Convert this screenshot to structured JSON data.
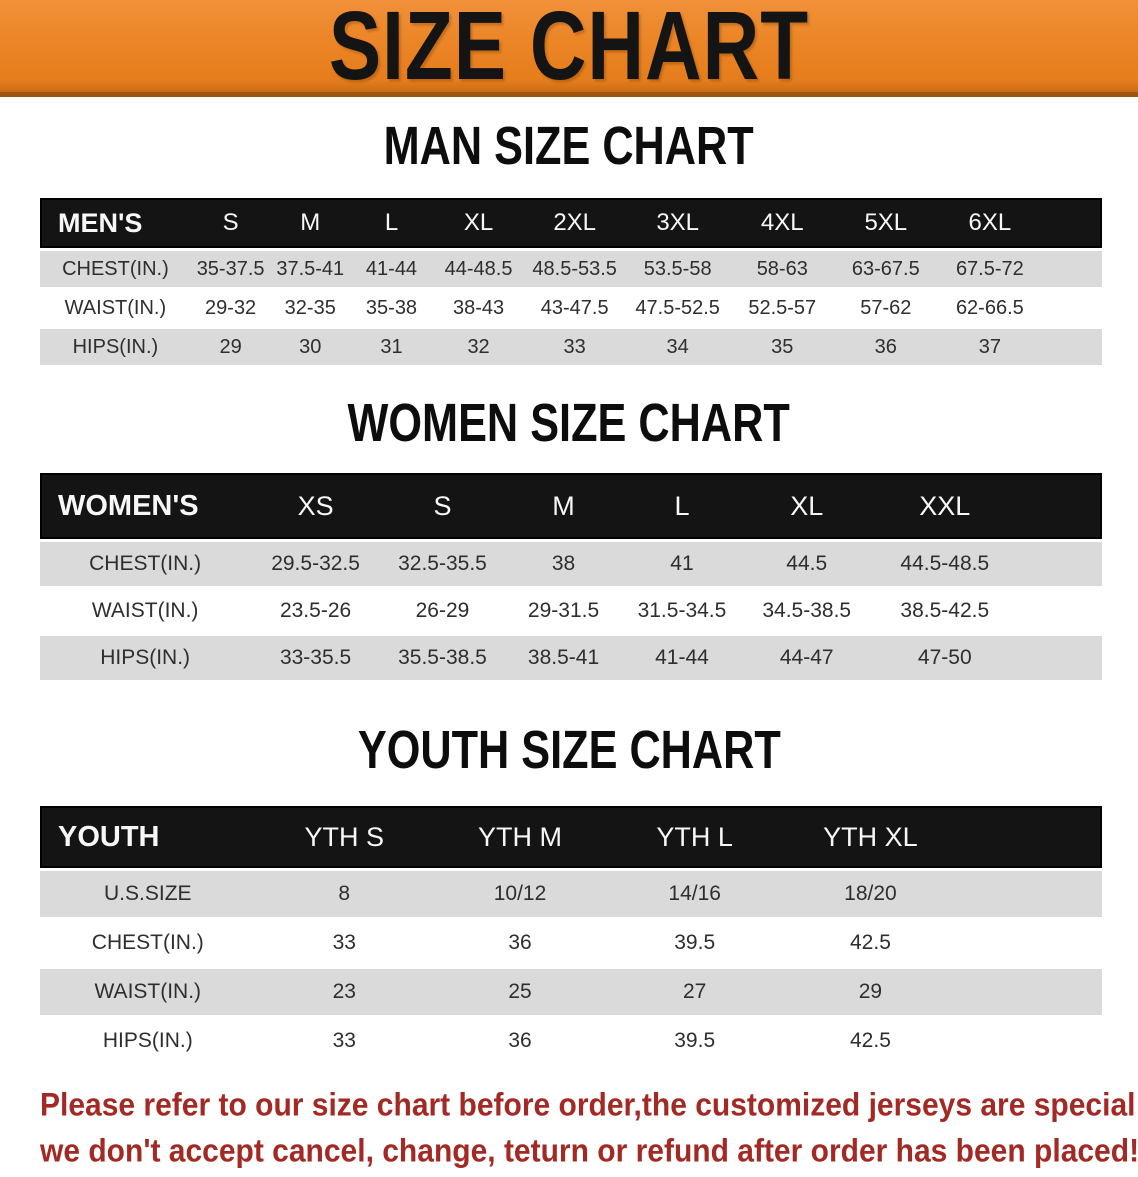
{
  "banner": {
    "title": "SIZE CHART"
  },
  "colors": {
    "banner_orange": "#EB8526",
    "banner_border": "#9E5510",
    "header_black": "#141414",
    "row_gray": "#DADADA",
    "note_red": "#A32A24"
  },
  "men": {
    "heading": "MAN SIZE CHART",
    "corner_label": "MEN'S",
    "sizes": [
      "S",
      "M",
      "L",
      "XL",
      "2XL",
      "3XL",
      "4XL",
      "5XL",
      "6XL"
    ],
    "rows": [
      {
        "label": "CHEST(IN.)",
        "values": [
          "35-37.5",
          "37.5-41",
          "41-44",
          "44-48.5",
          "48.5-53.5",
          "53.5-58",
          "58-63",
          "63-67.5",
          "67.5-72"
        ]
      },
      {
        "label": "WAIST(IN.)",
        "values": [
          "29-32",
          "32-35",
          "35-38",
          "38-43",
          "43-47.5",
          "47.5-52.5",
          "52.5-57",
          "57-62",
          "62-66.5"
        ]
      },
      {
        "label": "HIPS(IN.)",
        "values": [
          "29",
          "30",
          "31",
          "32",
          "33",
          "34",
          "35",
          "36",
          "37"
        ]
      }
    ]
  },
  "women": {
    "heading": "WOMEN SIZE CHART",
    "corner_label": "WOMEN'S",
    "sizes": [
      "XS",
      "S",
      "M",
      "L",
      "XL",
      "XXL"
    ],
    "rows": [
      {
        "label": "CHEST(IN.)",
        "values": [
          "29.5-32.5",
          "32.5-35.5",
          "38",
          "41",
          "44.5",
          "44.5-48.5"
        ]
      },
      {
        "label": "WAIST(IN.)",
        "values": [
          "23.5-26",
          "26-29",
          "29-31.5",
          "31.5-34.5",
          "34.5-38.5",
          "38.5-42.5"
        ]
      },
      {
        "label": "HIPS(IN.)",
        "values": [
          "33-35.5",
          "35.5-38.5",
          "38.5-41",
          "41-44",
          "44-47",
          "47-50"
        ]
      }
    ]
  },
  "youth": {
    "heading": "YOUTH SIZE CHART",
    "corner_label": "YOUTH",
    "sizes": [
      "YTH S",
      "YTH M",
      "YTH L",
      "YTH XL"
    ],
    "rows": [
      {
        "label": "U.S.SIZE",
        "values": [
          "8",
          "10/12",
          "14/16",
          "18/20"
        ]
      },
      {
        "label": "CHEST(IN.)",
        "values": [
          "33",
          "36",
          "39.5",
          "42.5"
        ]
      },
      {
        "label": "WAIST(IN.)",
        "values": [
          "23",
          "25",
          "27",
          "29"
        ]
      },
      {
        "label": "HIPS(IN.)",
        "values": [
          "33",
          "36",
          "39.5",
          "42.5"
        ]
      }
    ]
  },
  "note": {
    "line1": "Please refer to our size chart before order,the customized jerseys are special products,",
    "line2": "we don't accept cancel, change, teturn or refund after order has been placed!"
  }
}
